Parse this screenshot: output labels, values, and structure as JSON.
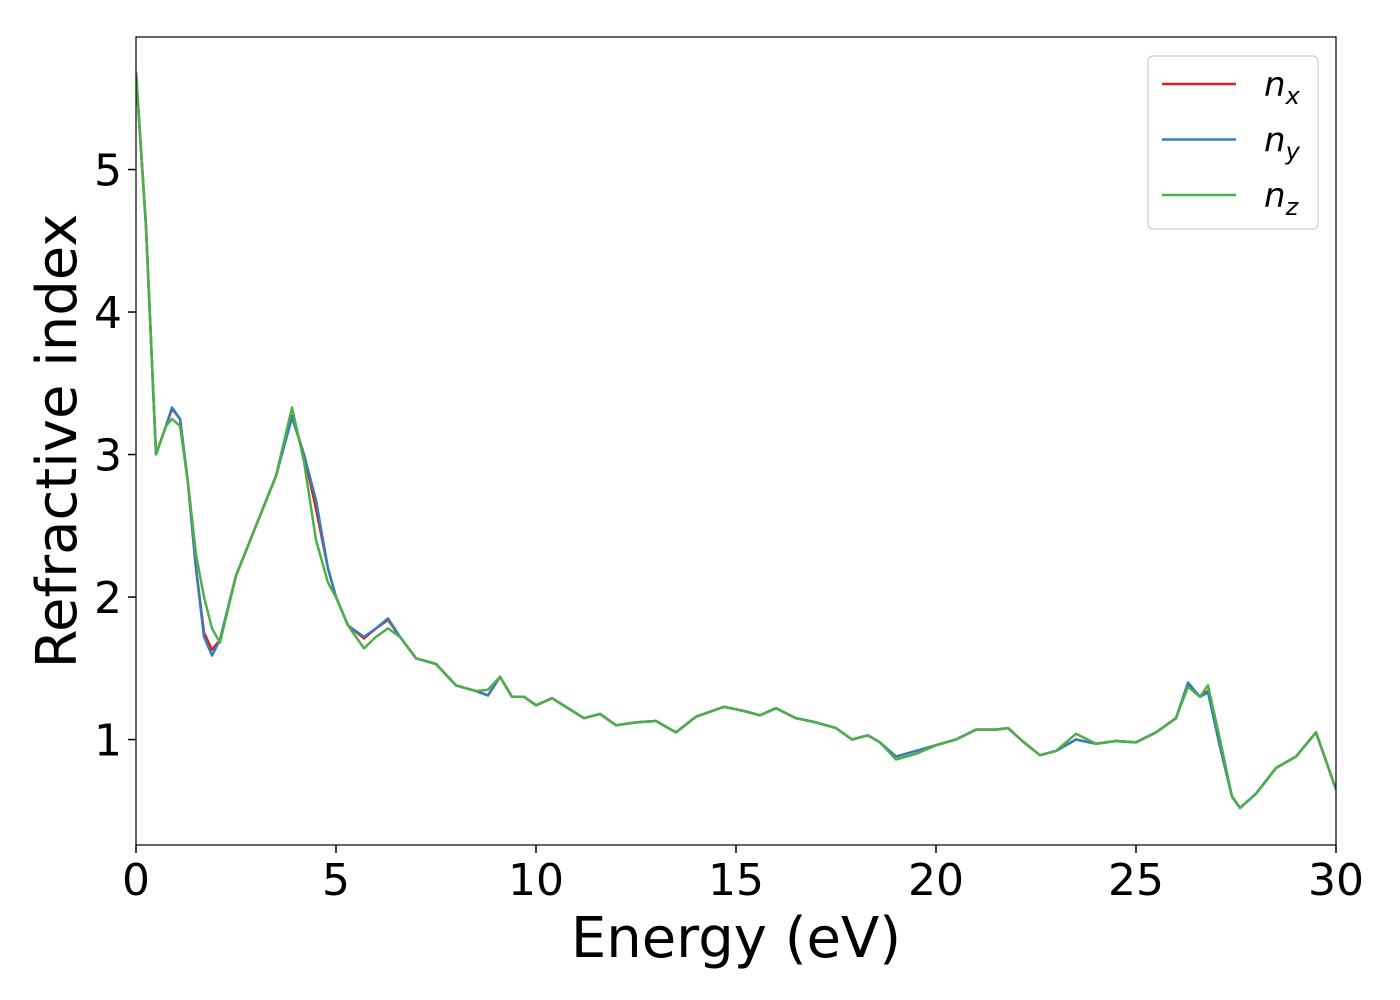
{
  "chart_data": {
    "type": "line",
    "xlabel": "Energy (eV)",
    "ylabel": "Refractive index",
    "x": [
      0,
      0.25,
      0.5,
      0.75,
      0.9,
      1.1,
      1.3,
      1.5,
      1.7,
      1.9,
      2.1,
      2.5,
      3,
      3.5,
      3.9,
      4.2,
      4.5,
      4.8,
      5,
      5.3,
      5.7,
      6,
      6.3,
      6.6,
      7,
      7.5,
      8,
      8.5,
      8.8,
      9.1,
      9.4,
      9.7,
      10,
      10.4,
      10.8,
      11.2,
      11.6,
      12,
      12.5,
      13,
      13.5,
      14,
      14.7,
      15.2,
      15.6,
      16,
      16.5,
      17,
      17.5,
      17.9,
      18.3,
      18.6,
      19,
      19.5,
      20,
      20.5,
      21,
      21.5,
      21.8,
      22.2,
      22.6,
      23,
      23.5,
      24,
      24.5,
      25,
      25.5,
      26,
      26.3,
      26.6,
      26.8,
      27.1,
      27.4,
      27.6,
      28,
      28.5,
      29,
      29.5,
      30
    ],
    "series": [
      {
        "name": "nx",
        "color": "#e41a1c",
        "values": [
          5.68,
          4.6,
          3.0,
          3.2,
          3.32,
          3.25,
          2.8,
          2.2,
          1.75,
          1.63,
          1.7,
          2.15,
          2.5,
          2.85,
          3.27,
          3.0,
          2.62,
          2.2,
          2.0,
          1.8,
          1.71,
          1.78,
          1.84,
          1.72,
          1.57,
          1.53,
          1.38,
          1.34,
          1.31,
          1.44,
          1.3,
          1.3,
          1.24,
          1.29,
          1.22,
          1.15,
          1.18,
          1.1,
          1.12,
          1.13,
          1.05,
          1.16,
          1.23,
          1.2,
          1.17,
          1.22,
          1.15,
          1.12,
          1.08,
          1.0,
          1.03,
          0.98,
          0.88,
          0.92,
          0.96,
          1.0,
          1.07,
          1.07,
          1.08,
          0.98,
          0.89,
          0.92,
          1.0,
          0.97,
          0.99,
          0.98,
          1.05,
          1.15,
          1.39,
          1.3,
          1.34,
          0.95,
          0.6,
          0.52,
          0.62,
          0.8,
          0.88,
          1.05,
          0.65
        ]
      },
      {
        "name": "ny",
        "color": "#377eb8",
        "values": [
          5.68,
          4.6,
          3.0,
          3.2,
          3.33,
          3.25,
          2.8,
          2.2,
          1.72,
          1.59,
          1.7,
          2.15,
          2.5,
          2.85,
          3.26,
          3.0,
          2.68,
          2.2,
          2.0,
          1.8,
          1.72,
          1.78,
          1.85,
          1.72,
          1.57,
          1.53,
          1.38,
          1.34,
          1.31,
          1.44,
          1.3,
          1.3,
          1.24,
          1.29,
          1.22,
          1.15,
          1.18,
          1.1,
          1.12,
          1.13,
          1.05,
          1.16,
          1.23,
          1.2,
          1.17,
          1.22,
          1.15,
          1.12,
          1.08,
          1.0,
          1.03,
          0.98,
          0.88,
          0.92,
          0.96,
          1.0,
          1.07,
          1.07,
          1.08,
          0.98,
          0.89,
          0.92,
          1.0,
          0.97,
          0.99,
          0.98,
          1.05,
          1.15,
          1.4,
          1.3,
          1.33,
          0.95,
          0.6,
          0.52,
          0.62,
          0.8,
          0.88,
          1.05,
          0.65
        ]
      },
      {
        "name": "nz",
        "color": "#4daf4a",
        "values": [
          5.68,
          4.6,
          3.0,
          3.2,
          3.25,
          3.2,
          2.8,
          2.3,
          2.0,
          1.78,
          1.68,
          2.15,
          2.5,
          2.85,
          3.33,
          2.95,
          2.4,
          2.1,
          2.0,
          1.8,
          1.64,
          1.72,
          1.78,
          1.72,
          1.57,
          1.53,
          1.38,
          1.34,
          1.35,
          1.44,
          1.3,
          1.3,
          1.24,
          1.29,
          1.22,
          1.15,
          1.18,
          1.1,
          1.12,
          1.13,
          1.05,
          1.16,
          1.23,
          1.2,
          1.17,
          1.22,
          1.15,
          1.12,
          1.08,
          1.0,
          1.03,
          0.98,
          0.86,
          0.9,
          0.96,
          1.0,
          1.07,
          1.07,
          1.08,
          0.98,
          0.89,
          0.92,
          1.04,
          0.97,
          0.99,
          0.98,
          1.05,
          1.15,
          1.37,
          1.3,
          1.38,
          1.0,
          0.6,
          0.52,
          0.62,
          0.8,
          0.88,
          1.05,
          0.65
        ]
      }
    ],
    "xlim": [
      0,
      30
    ],
    "xticks": [
      0,
      5,
      10,
      15,
      20,
      25,
      30
    ],
    "ylim": [
      0.26,
      5.93
    ],
    "yticks": [
      1,
      2,
      3,
      4,
      5
    ],
    "legend": "upper right"
  }
}
